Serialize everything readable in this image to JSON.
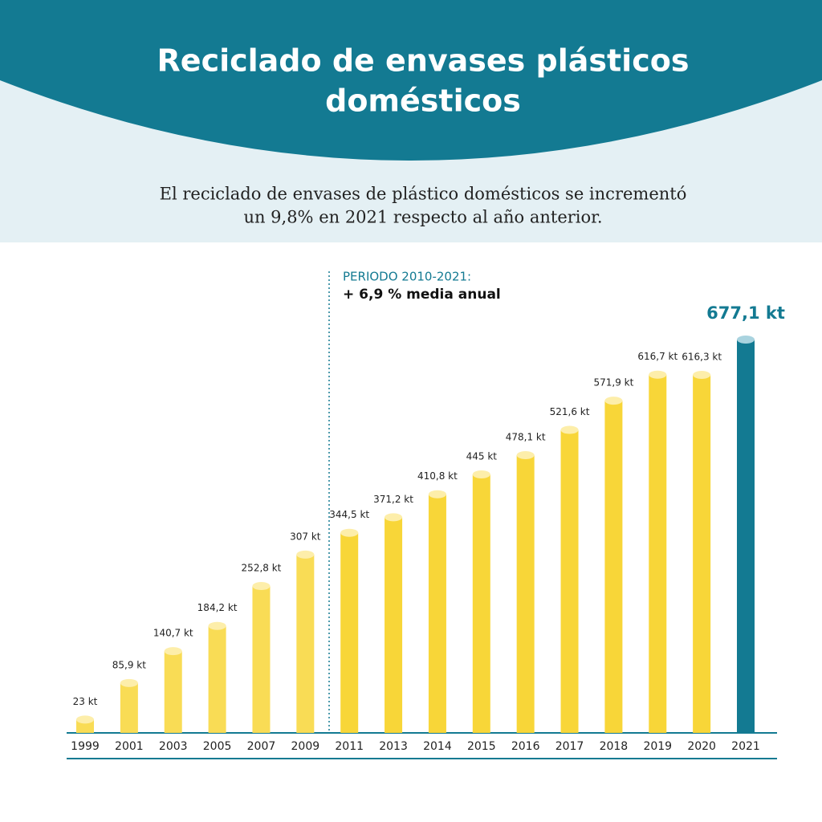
{
  "title": [
    "Reciclado de envases plásticos",
    "domésticos"
  ],
  "subtitle": [
    "El reciclado de envases de plástico domésticos se incrementó",
    "un 9,8% en 2021 respecto al año anterior."
  ],
  "chart_data": {
    "type": "bar",
    "annotation": [
      "PERIODO 2010-2021:",
      "+ 6,9 % media anual"
    ],
    "categories": [
      "1999",
      "2001",
      "2003",
      "2005",
      "2007",
      "2009",
      "2011",
      "2013",
      "2014",
      "2015",
      "2016",
      "2017",
      "2018",
      "2019",
      "2020",
      "2021"
    ],
    "values": [
      23,
      85.9,
      140.7,
      184.2,
      252.8,
      307,
      344.5,
      371.2,
      410.8,
      445,
      478.1,
      521.6,
      571.9,
      616.7,
      616.3,
      677.1
    ],
    "value_labels": [
      "23 kt",
      "85,9 kt",
      "140,7 kt",
      "184,2 kt",
      "252,8 kt",
      "307 kt",
      "344,5 kt",
      "371,2 kt",
      "410,8 kt",
      "445 kt",
      "478,1 kt",
      "521,6 kt",
      "571,9 kt",
      "616,7 kt",
      "616,3 kt",
      "677,1 kt"
    ],
    "colors": [
      "#f9dc55",
      "#f9dc55",
      "#f9dc55",
      "#f9dc55",
      "#f9dc55",
      "#f9dc55",
      "#f8d638",
      "#f8d638",
      "#f8d638",
      "#f8d638",
      "#f8d638",
      "#f8d638",
      "#f8d638",
      "#f8d638",
      "#f8d638",
      "#137a92"
    ]
  }
}
